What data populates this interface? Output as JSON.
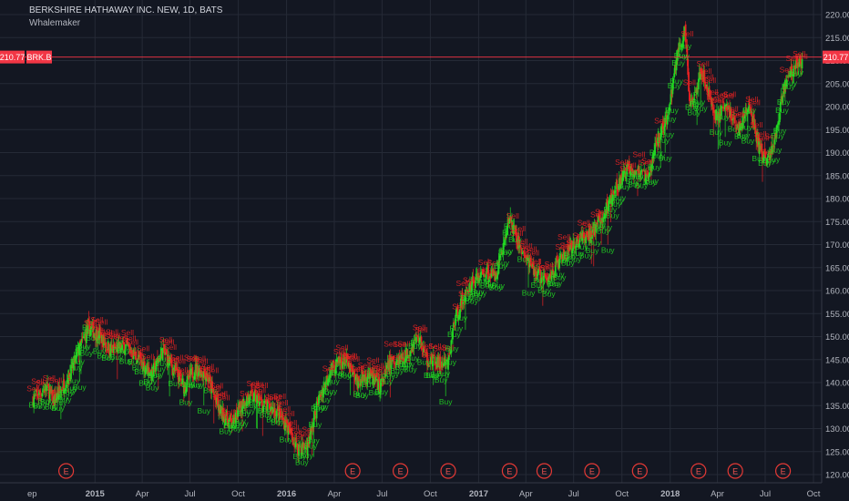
{
  "header": {
    "title": "BERKSHIRE HATHAWAY INC. NEW, 1D, BATS",
    "indicator": "Whalemaker"
  },
  "price_tag": {
    "value": "210.77",
    "ticker": "BRK.B"
  },
  "colors": {
    "background": "#131722",
    "grid": "#252a36",
    "up": "#26a69a",
    "down": "#ef5350",
    "buy": "#22dd22",
    "sell": "#ee2222",
    "price_line": "#f23645",
    "axis_text": "#b2b5be"
  },
  "chart_data": {
    "type": "candlestick",
    "title": "BERKSHIRE HATHAWAY INC. NEW, 1D, BATS",
    "symbol": "BRK.B",
    "indicator": "Whalemaker",
    "ylim": [
      118,
      222
    ],
    "grid": true,
    "y_ticks": [
      "120.00",
      "125.00",
      "130.00",
      "135.00",
      "140.00",
      "145.00",
      "150.00",
      "155.00",
      "160.00",
      "165.00",
      "170.00",
      "175.00",
      "180.00",
      "185.00",
      "190.00",
      "195.00",
      "200.00",
      "205.00",
      "210.00",
      "215.00",
      "220.00"
    ],
    "x_ticks": [
      "ep",
      "2015",
      "Apr",
      "Jul",
      "Oct",
      "2016",
      "Apr",
      "Jul",
      "Oct",
      "2017",
      "Apr",
      "Jul",
      "Oct",
      "2018",
      "Apr",
      "Jul",
      "Oct"
    ],
    "last_price": 210.77,
    "close_path": [
      [
        "2014-09-05",
        136.5
      ],
      [
        "2014-10-01",
        139
      ],
      [
        "2014-10-15",
        136
      ],
      [
        "2014-11-15",
        142
      ],
      [
        "2014-12-01",
        147
      ],
      [
        "2014-12-20",
        152
      ],
      [
        "2015-01-10",
        150
      ],
      [
        "2015-02-01",
        147
      ],
      [
        "2015-03-01",
        148
      ],
      [
        "2015-03-25",
        145
      ],
      [
        "2015-04-20",
        142
      ],
      [
        "2015-05-10",
        147
      ],
      [
        "2015-05-30",
        143
      ],
      [
        "2015-06-20",
        139
      ],
      [
        "2015-07-10",
        143
      ],
      [
        "2015-08-01",
        142
      ],
      [
        "2015-08-25",
        134
      ],
      [
        "2015-09-20",
        131
      ],
      [
        "2015-10-10",
        136
      ],
      [
        "2015-10-30",
        137
      ],
      [
        "2015-11-20",
        135
      ],
      [
        "2015-12-10",
        134
      ],
      [
        "2015-12-31",
        131
      ],
      [
        "2016-01-20",
        126
      ],
      [
        "2016-02-10",
        126
      ],
      [
        "2016-03-01",
        136
      ],
      [
        "2016-03-25",
        143
      ],
      [
        "2016-04-20",
        145
      ],
      [
        "2016-05-15",
        140
      ],
      [
        "2016-06-05",
        142
      ],
      [
        "2016-06-27",
        139
      ],
      [
        "2016-07-15",
        144
      ],
      [
        "2016-08-15",
        146
      ],
      [
        "2016-09-08",
        150
      ],
      [
        "2016-09-25",
        145
      ],
      [
        "2016-10-20",
        144
      ],
      [
        "2016-11-04",
        144
      ],
      [
        "2016-11-15",
        153
      ],
      [
        "2016-12-01",
        158
      ],
      [
        "2016-12-20",
        162
      ],
      [
        "2017-01-15",
        164
      ],
      [
        "2017-02-01",
        163
      ],
      [
        "2017-02-20",
        171
      ],
      [
        "2017-03-01",
        176
      ],
      [
        "2017-03-15",
        171
      ],
      [
        "2017-04-10",
        165
      ],
      [
        "2017-05-10",
        162
      ],
      [
        "2017-06-01",
        166
      ],
      [
        "2017-06-20",
        168
      ],
      [
        "2017-07-10",
        171
      ],
      [
        "2017-08-01",
        172
      ],
      [
        "2017-08-25",
        176
      ],
      [
        "2017-09-20",
        182
      ],
      [
        "2017-10-15",
        187
      ],
      [
        "2017-11-01",
        186
      ],
      [
        "2017-11-20",
        184
      ],
      [
        "2017-12-05",
        192
      ],
      [
        "2017-12-28",
        198
      ],
      [
        "2018-01-15",
        212
      ],
      [
        "2018-01-29",
        216
      ],
      [
        "2018-02-08",
        200
      ],
      [
        "2018-02-28",
        208
      ],
      [
        "2018-03-10",
        205
      ],
      [
        "2018-03-28",
        198
      ],
      [
        "2018-04-20",
        200
      ],
      [
        "2018-05-10",
        195
      ],
      [
        "2018-06-01",
        200
      ],
      [
        "2018-06-20",
        191
      ],
      [
        "2018-07-05",
        188
      ],
      [
        "2018-07-20",
        193
      ],
      [
        "2018-08-05",
        204
      ],
      [
        "2018-08-20",
        208
      ],
      [
        "2018-09-10",
        210
      ]
    ],
    "earnings_markers": [
      {
        "date": "2014-11-07",
        "label": "E"
      },
      {
        "date": "2016-05-06",
        "label": "E"
      },
      {
        "date": "2016-08-05",
        "label": "E"
      },
      {
        "date": "2016-11-04",
        "label": "E"
      },
      {
        "date": "2017-03-01",
        "label": "E"
      },
      {
        "date": "2017-05-06",
        "label": "E"
      },
      {
        "date": "2017-08-05",
        "label": "E"
      },
      {
        "date": "2017-11-04",
        "label": "E"
      },
      {
        "date": "2018-02-24",
        "label": "E"
      },
      {
        "date": "2018-05-05",
        "label": "E"
      },
      {
        "date": "2018-08-04",
        "label": "E"
      }
    ],
    "signal_labels": {
      "buy": "Buy",
      "sell": "Sell"
    }
  }
}
